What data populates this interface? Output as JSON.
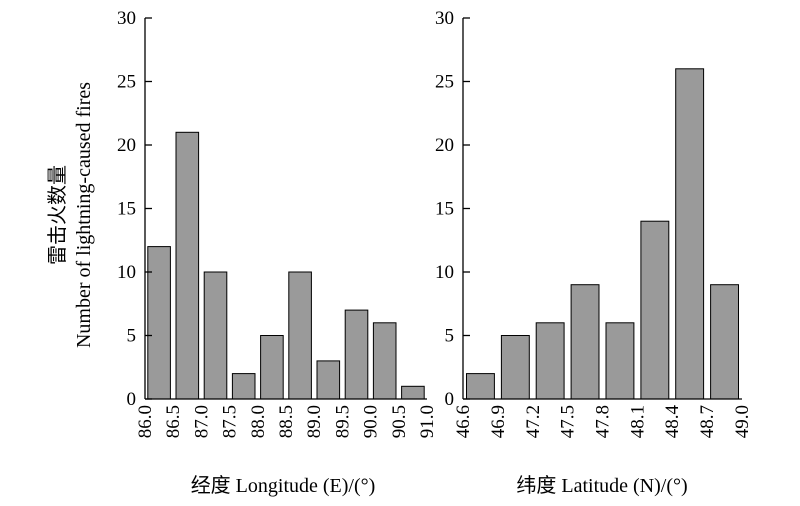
{
  "ylabel_line1": "雷击火数量",
  "ylabel_line2": "Number of lightning-caused fires",
  "chart_data": [
    {
      "type": "bar",
      "xlabel": "经度 Longitude (E)/(°)",
      "ylabel": "雷击火数量 Number of lightning-caused fires",
      "x_ticks": [
        "86.0",
        "86.5",
        "87.0",
        "87.5",
        "88.0",
        "88.5",
        "89.0",
        "89.5",
        "90.0",
        "90.5",
        "91.0"
      ],
      "bins": [
        [
          86.0,
          86.5
        ],
        [
          86.5,
          87.0
        ],
        [
          87.0,
          87.5
        ],
        [
          87.5,
          88.0
        ],
        [
          88.0,
          88.5
        ],
        [
          88.5,
          89.0
        ],
        [
          89.0,
          89.5
        ],
        [
          89.5,
          90.0
        ],
        [
          90.0,
          90.5
        ],
        [
          90.5,
          91.0
        ]
      ],
      "values": [
        12,
        21,
        10,
        2,
        5,
        10,
        3,
        7,
        6,
        1
      ],
      "ylim": [
        0,
        30
      ],
      "y_ticks": [
        "0",
        "5",
        "10",
        "15",
        "20",
        "25",
        "30"
      ]
    },
    {
      "type": "bar",
      "xlabel": "纬度 Latitude (N)/(°)",
      "ylabel": "",
      "x_ticks": [
        "46.6",
        "46.9",
        "47.2",
        "47.5",
        "47.8",
        "48.1",
        "48.4",
        "48.7",
        "49.0"
      ],
      "bins": [
        [
          46.6,
          46.9
        ],
        [
          46.9,
          47.2
        ],
        [
          47.2,
          47.5
        ],
        [
          47.5,
          47.8
        ],
        [
          47.8,
          48.1
        ],
        [
          48.1,
          48.4
        ],
        [
          48.4,
          48.7
        ],
        [
          48.7,
          49.0
        ]
      ],
      "values": [
        2,
        5,
        6,
        9,
        6,
        14,
        26,
        9
      ],
      "ylim": [
        0,
        30
      ],
      "y_ticks": [
        "0",
        "5",
        "10",
        "15",
        "20",
        "25",
        "30"
      ]
    }
  ]
}
